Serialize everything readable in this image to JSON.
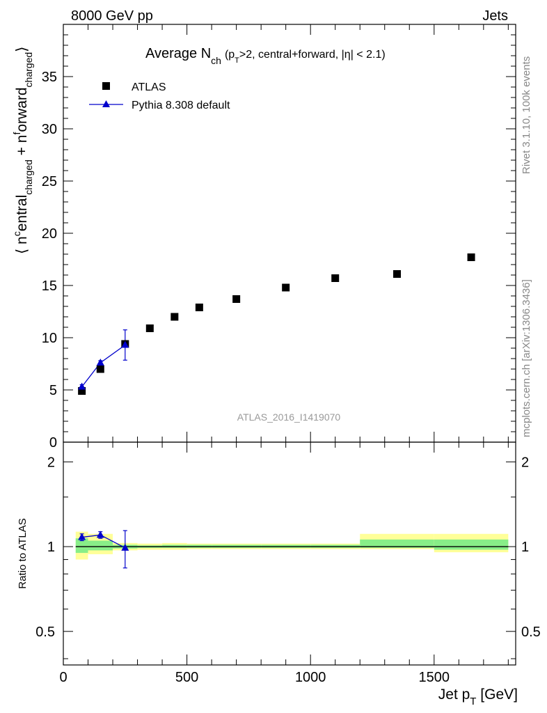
{
  "header": {
    "left": "8000 GeV pp",
    "right": "Jets"
  },
  "side_labels": {
    "rivet": "Rivet 3.1.10,  100k events",
    "mcplots": "mcplots.cern.ch [arXiv:1306.3436]"
  },
  "plot_title": {
    "main": "Average N",
    "main_sub": "ch",
    "cond_1": "(p",
    "cond_sub": "T",
    "cond_2": ">2, central+forward, |η| < 2.1)"
  },
  "watermark": "ATLAS_2016_I1419070",
  "axes": {
    "ylabel_main": "⟨ n",
    "ylabel_sup": "c",
    "ylabel_mid1": "entral",
    "ylabel_sub1": "charged",
    "ylabel_mid2": " + n",
    "ylabel_sup2": "f",
    "ylabel_mid3": "orward",
    "ylabel_sub2": "charged",
    "ylabel_end": "⟩",
    "ratio_ylabel": "Ratio to ATLAS",
    "xlabel_main": "Jet p",
    "xlabel_sub": "T",
    "xlabel_unit": " [GeV]",
    "x_ticks": [
      "0",
      "500",
      "1000",
      "1500"
    ],
    "y_ticks": [
      "0",
      "5",
      "10",
      "15",
      "20",
      "25",
      "30",
      "35"
    ],
    "ratio_y_ticks": [
      "0.5",
      "1",
      "2"
    ]
  },
  "legend": [
    {
      "name": "ATLAS",
      "marker": "square",
      "color": "#000000"
    },
    {
      "name": "Pythia 8.308 default",
      "marker": "triangle",
      "color": "#0000cc"
    }
  ],
  "chart_data": {
    "type": "scatter",
    "xlabel": "Jet pT [GeV]",
    "ylabel": "⟨ ncentral_charged + nforward_charged ⟩",
    "xlim": [
      0,
      1830
    ],
    "ylim": [
      0,
      40
    ],
    "ratio_ylim": [
      0.38,
      2.35
    ],
    "ratio_scale": "log",
    "legend_position": "top-left",
    "series": [
      {
        "name": "ATLAS",
        "x": [
          75,
          150,
          250,
          350,
          450,
          550,
          700,
          900,
          1100,
          1350,
          1650
        ],
        "y": [
          4.9,
          7.0,
          9.4,
          10.9,
          12.0,
          12.9,
          13.7,
          14.8,
          15.7,
          16.1,
          17.7
        ]
      },
      {
        "name": "Pythia 8.308 default",
        "x": [
          75,
          150,
          250
        ],
        "y": [
          5.3,
          7.6,
          9.3
        ],
        "yerr": [
          0.2,
          0.2,
          1.45
        ]
      }
    ],
    "ratio": {
      "x": [
        75,
        150,
        250
      ],
      "y": [
        1.08,
        1.1,
        0.99
      ],
      "yerr": [
        0.03,
        0.03,
        0.15
      ]
    },
    "ratio_bands": [
      {
        "x0": 50,
        "x1": 100,
        "inner": [
          0.95,
          1.07
        ],
        "outer": [
          0.9,
          1.13
        ]
      },
      {
        "x0": 100,
        "x1": 200,
        "inner": [
          0.97,
          1.05
        ],
        "outer": [
          0.94,
          1.11
        ]
      },
      {
        "x0": 200,
        "x1": 300,
        "inner": [
          0.985,
          1.015
        ],
        "outer": [
          0.97,
          1.03
        ]
      },
      {
        "x0": 300,
        "x1": 400,
        "inner": [
          0.99,
          1.01
        ],
        "outer": [
          0.975,
          1.025
        ]
      },
      {
        "x0": 400,
        "x1": 500,
        "inner": [
          0.99,
          1.015
        ],
        "outer": [
          0.975,
          1.03
        ]
      },
      {
        "x0": 500,
        "x1": 600,
        "inner": [
          0.99,
          1.015
        ],
        "outer": [
          0.98,
          1.025
        ]
      },
      {
        "x0": 600,
        "x1": 800,
        "inner": [
          0.99,
          1.015
        ],
        "outer": [
          0.98,
          1.025
        ]
      },
      {
        "x0": 800,
        "x1": 1000,
        "inner": [
          0.99,
          1.015
        ],
        "outer": [
          0.98,
          1.025
        ]
      },
      {
        "x0": 1000,
        "x1": 1200,
        "inner": [
          0.99,
          1.015
        ],
        "outer": [
          0.98,
          1.025
        ]
      },
      {
        "x0": 1200,
        "x1": 1500,
        "inner": [
          0.99,
          1.06
        ],
        "outer": [
          0.98,
          1.11
        ]
      },
      {
        "x0": 1500,
        "x1": 1800,
        "inner": [
          0.975,
          1.06
        ],
        "outer": [
          0.955,
          1.11
        ]
      }
    ]
  },
  "colors": {
    "band_inner": "#88ee88",
    "band_outer": "#ffff99",
    "mc": "#0000cc",
    "data": "#000000"
  }
}
